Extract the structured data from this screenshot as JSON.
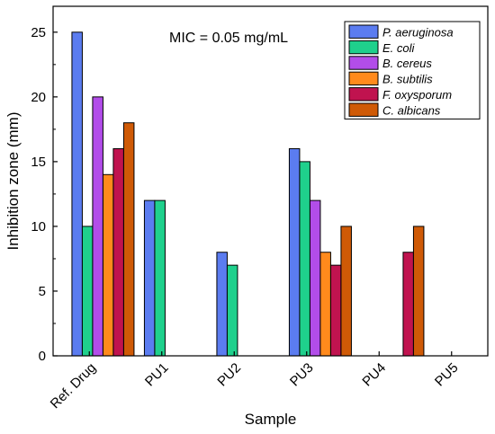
{
  "chart_data": {
    "type": "bar",
    "title": "",
    "annotation": "MIC = 0.05 mg/mL",
    "xlabel": "Sample",
    "ylabel": "Inhibition zone (mm)",
    "ylim": [
      0,
      27
    ],
    "yticks": [
      0,
      5,
      10,
      15,
      20,
      25
    ],
    "categories": [
      "Ref. Drug",
      "PU1",
      "PU2",
      "PU3",
      "PU4",
      "PU5"
    ],
    "legend_position": "top-right",
    "grid": false,
    "series": [
      {
        "name": "P. aeruginosa",
        "color": "#5b7cf0",
        "values": [
          25,
          12,
          8,
          16,
          null,
          null
        ]
      },
      {
        "name": "E. coli",
        "color": "#1fd08c",
        "values": [
          10,
          12,
          7,
          15,
          null,
          null
        ]
      },
      {
        "name": "B. cereus",
        "color": "#b24de9",
        "values": [
          20,
          null,
          null,
          12,
          null,
          null
        ]
      },
      {
        "name": "B. subtilis",
        "color": "#ff8a1c",
        "values": [
          14,
          null,
          null,
          8,
          null,
          null
        ]
      },
      {
        "name": "F. oxysporum",
        "color": "#c0134f",
        "values": [
          16,
          null,
          null,
          7,
          8,
          null
        ]
      },
      {
        "name": "C. albicans",
        "color": "#cf5a06",
        "values": [
          18,
          null,
          null,
          10,
          10,
          null
        ]
      }
    ]
  }
}
